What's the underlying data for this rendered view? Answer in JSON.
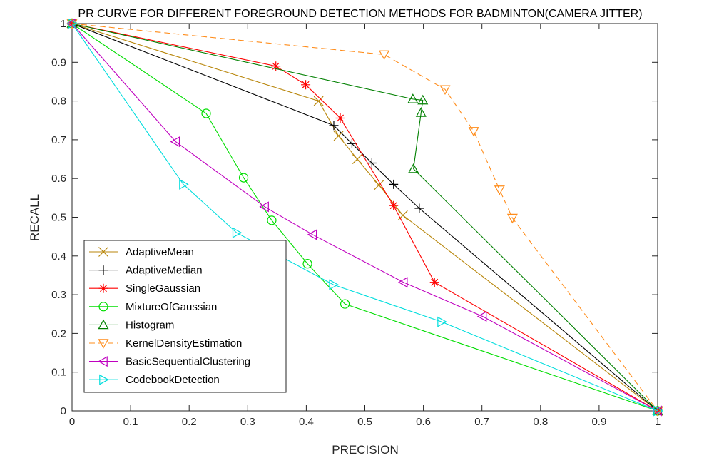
{
  "chart_data": {
    "type": "line",
    "title": "PR CURVE FOR DIFFERENT FOREGROUND DETECTION METHODS FOR BADMINTON(CAMERA JITTER)",
    "xlabel": "PRECISION",
    "ylabel": "RECALL",
    "xlim": [
      0,
      1
    ],
    "ylim": [
      0,
      1
    ],
    "xticks": [
      "0",
      "0.1",
      "0.2",
      "0.3",
      "0.4",
      "0.5",
      "0.6",
      "0.7",
      "0.8",
      "0.9",
      "1"
    ],
    "yticks": [
      "0",
      "0.1",
      "0.2",
      "0.3",
      "0.4",
      "0.5",
      "0.6",
      "0.7",
      "0.8",
      "0.9",
      "1"
    ],
    "grid": false,
    "legend_position": "bottom-left",
    "series": [
      {
        "name": "AdaptiveMean",
        "color": "#b8860b",
        "marker": "x",
        "dashed": false,
        "x": [
          0,
          0.421,
          0.455,
          0.487,
          0.524,
          0.565,
          1
        ],
        "y": [
          1,
          0.8,
          0.71,
          0.65,
          0.583,
          0.505,
          0
        ]
      },
      {
        "name": "AdaptiveMedian",
        "color": "#000000",
        "marker": "plus",
        "dashed": false,
        "x": [
          0,
          0.447,
          0.478,
          0.512,
          0.549,
          0.593,
          1
        ],
        "y": [
          1,
          0.737,
          0.69,
          0.64,
          0.585,
          0.523,
          0
        ]
      },
      {
        "name": "SingleGaussian",
        "color": "#ff0000",
        "marker": "asterisk",
        "dashed": false,
        "x": [
          0,
          0.348,
          0.399,
          0.458,
          0.549,
          0.619,
          1
        ],
        "y": [
          1,
          0.89,
          0.842,
          0.756,
          0.53,
          0.332,
          0
        ]
      },
      {
        "name": "MixtureOfGaussian",
        "color": "#00dd00",
        "marker": "circle",
        "dashed": false,
        "x": [
          0,
          0.229,
          0.293,
          0.341,
          0.402,
          0.466,
          1
        ],
        "y": [
          1,
          0.768,
          0.602,
          0.492,
          0.38,
          0.276,
          0
        ]
      },
      {
        "name": "Histogram",
        "color": "#008000",
        "marker": "triangle-up",
        "dashed": false,
        "x": [
          0,
          0.582,
          0.599,
          0.596,
          0.583,
          1
        ],
        "y": [
          1,
          0.805,
          0.802,
          0.77,
          0.625,
          0
        ]
      },
      {
        "name": "KernelDensityEstimation",
        "color": "#ff8c1a",
        "marker": "triangle-down",
        "dashed": true,
        "x": [
          0,
          0.533,
          0.637,
          0.686,
          0.73,
          0.752,
          1
        ],
        "y": [
          1,
          0.92,
          0.83,
          0.722,
          0.571,
          0.498,
          0
        ]
      },
      {
        "name": "BasicSequentialClustering",
        "color": "#bf00bf",
        "marker": "triangle-left",
        "dashed": false,
        "x": [
          0,
          0.177,
          0.329,
          0.411,
          0.566,
          0.701,
          1
        ],
        "y": [
          1,
          0.695,
          0.527,
          0.455,
          0.332,
          0.244,
          0
        ]
      },
      {
        "name": "CodebookDetection",
        "color": "#00dddd",
        "marker": "triangle-right",
        "dashed": false,
        "x": [
          0,
          0.19,
          0.281,
          0.446,
          0.631,
          1
        ],
        "y": [
          1,
          0.585,
          0.46,
          0.326,
          0.23,
          0
        ]
      }
    ]
  }
}
